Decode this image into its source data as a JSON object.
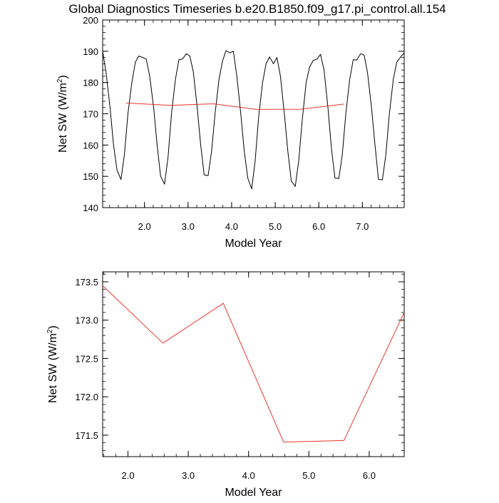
{
  "title": "Global Diagnostics Timeseries b.e20.B1850.f09_g17.pi_control.all.154",
  "chart_data": [
    {
      "type": "line",
      "xlabel": "Model Year",
      "ylabel": "Net SW (W/m",
      "ylabel_sup": "2",
      "ylabel_close": ")",
      "xlim": [
        1.04,
        7.96
      ],
      "ylim": [
        140,
        200
      ],
      "xticks": [
        2,
        3,
        4,
        5,
        6,
        7
      ],
      "xtick_labels": [
        "2.0",
        "3.0",
        "4.0",
        "5.0",
        "6.0",
        "7.0"
      ],
      "yticks": [
        140,
        150,
        160,
        170,
        180,
        190,
        200
      ],
      "ytick_labels": [
        "140",
        "150",
        "160",
        "170",
        "180",
        "190",
        "200"
      ],
      "series": [
        {
          "color": "#000000",
          "x": [
            1.04,
            1.12,
            1.21,
            1.29,
            1.37,
            1.46,
            1.54,
            1.62,
            1.71,
            1.79,
            1.87,
            1.96,
            2.04,
            2.12,
            2.21,
            2.29,
            2.37,
            2.46,
            2.54,
            2.62,
            2.71,
            2.79,
            2.87,
            2.96,
            3.04,
            3.12,
            3.21,
            3.29,
            3.37,
            3.46,
            3.54,
            3.62,
            3.71,
            3.79,
            3.87,
            3.96,
            4.04,
            4.12,
            4.21,
            4.29,
            4.37,
            4.46,
            4.54,
            4.62,
            4.71,
            4.79,
            4.87,
            4.96,
            5.04,
            5.12,
            5.21,
            5.29,
            5.37,
            5.46,
            5.54,
            5.62,
            5.71,
            5.79,
            5.87,
            5.96,
            6.04,
            6.12,
            6.21,
            6.29,
            6.37,
            6.46,
            6.54,
            6.62,
            6.71,
            6.79,
            6.87,
            6.96,
            7.04,
            7.12,
            7.21,
            7.29,
            7.37,
            7.46,
            7.54,
            7.62,
            7.71,
            7.79,
            7.87,
            7.96
          ],
          "y": [
            190,
            183,
            172,
            160,
            152,
            149,
            157,
            170,
            180,
            186.5,
            188.5,
            188,
            187.5,
            182,
            172,
            160,
            150,
            147.5,
            156,
            170,
            181,
            187.3,
            187.5,
            189.2,
            188.5,
            183.5,
            172,
            160,
            150.5,
            150.2,
            158,
            170,
            181,
            186.8,
            190.2,
            189.5,
            190,
            182,
            170,
            158,
            149.5,
            146,
            155,
            169,
            180,
            186,
            188.2,
            186,
            188,
            182,
            170,
            158,
            148.5,
            146.8,
            155,
            168,
            180,
            185,
            187,
            187.5,
            189,
            184,
            172,
            159,
            149.5,
            149.3,
            157,
            170,
            181,
            187.3,
            187.2,
            189.2,
            188.8,
            183,
            172,
            160,
            149,
            148.9,
            157,
            170,
            181,
            186.5,
            188,
            189.5
          ]
        },
        {
          "color": "#e8352d",
          "x": [
            1.58,
            2.58,
            3.58,
            4.58,
            5.58,
            6.58
          ],
          "y": [
            173.45,
            172.7,
            173.2,
            171.4,
            171.45,
            173.1
          ]
        }
      ]
    },
    {
      "type": "line",
      "xlabel": "Model Year",
      "ylabel": "Net SW (W/m",
      "ylabel_sup": "2",
      "ylabel_close": ")",
      "xlim": [
        1.58,
        6.58
      ],
      "ylim": [
        171.22,
        173.63
      ],
      "xticks": [
        2,
        3,
        4,
        5,
        6
      ],
      "xtick_labels": [
        "2.0",
        "3.0",
        "4.0",
        "5.0",
        "6.0"
      ],
      "yticks": [
        171.5,
        172.0,
        172.5,
        173.0,
        173.5
      ],
      "ytick_labels": [
        "171.5",
        "172.0",
        "172.5",
        "173.0",
        "173.5"
      ],
      "series": [
        {
          "color": "#e8352d",
          "x": [
            1.58,
            2.58,
            3.58,
            4.58,
            5.58,
            6.58
          ],
          "y": [
            173.45,
            172.7,
            173.22,
            171.41,
            171.43,
            173.1
          ]
        }
      ]
    }
  ]
}
